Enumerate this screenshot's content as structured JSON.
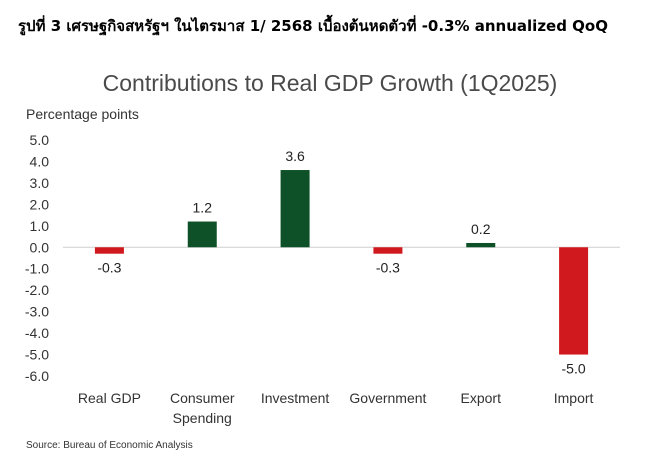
{
  "header": {
    "title": "รูปที่ 3 เศรษฐกิจสหรัฐฯ ในไตรมาส 1/ 2568 เบื้องต้นหดตัวที่ -0.3% annualized QoQ"
  },
  "source": "Source: Bureau of Economic Analysis",
  "colors": {
    "positive": "#0e5128",
    "negative": "#d0191e",
    "axis": "#cfcfcf"
  },
  "chart_data": {
    "type": "bar",
    "title": "Contributions to Real GDP Growth (1Q2025)",
    "ylabel": "Percentage points",
    "xlabel": "",
    "categories": [
      "Real GDP",
      "Consumer\nSpending",
      "Investment",
      "Government",
      "Export",
      "Import"
    ],
    "values": [
      -0.3,
      1.2,
      3.6,
      -0.3,
      0.2,
      -5.0
    ],
    "value_labels": [
      "-0.3",
      "1.2",
      "3.6",
      "-0.3",
      "0.2",
      "-5.0"
    ],
    "ylim": [
      -6,
      5
    ],
    "yticks": [
      5,
      4,
      3,
      2,
      1,
      0,
      -1,
      -2,
      -3,
      -4,
      -5,
      -6
    ],
    "ytick_labels": [
      "5.0",
      "4.0",
      "3.0",
      "2.0",
      "1.0",
      "0.0",
      "-1.0",
      "-2.0",
      "-3.0",
      "-4.0",
      "-5.0",
      "-6.0"
    ],
    "grid": false,
    "legend": "none"
  }
}
